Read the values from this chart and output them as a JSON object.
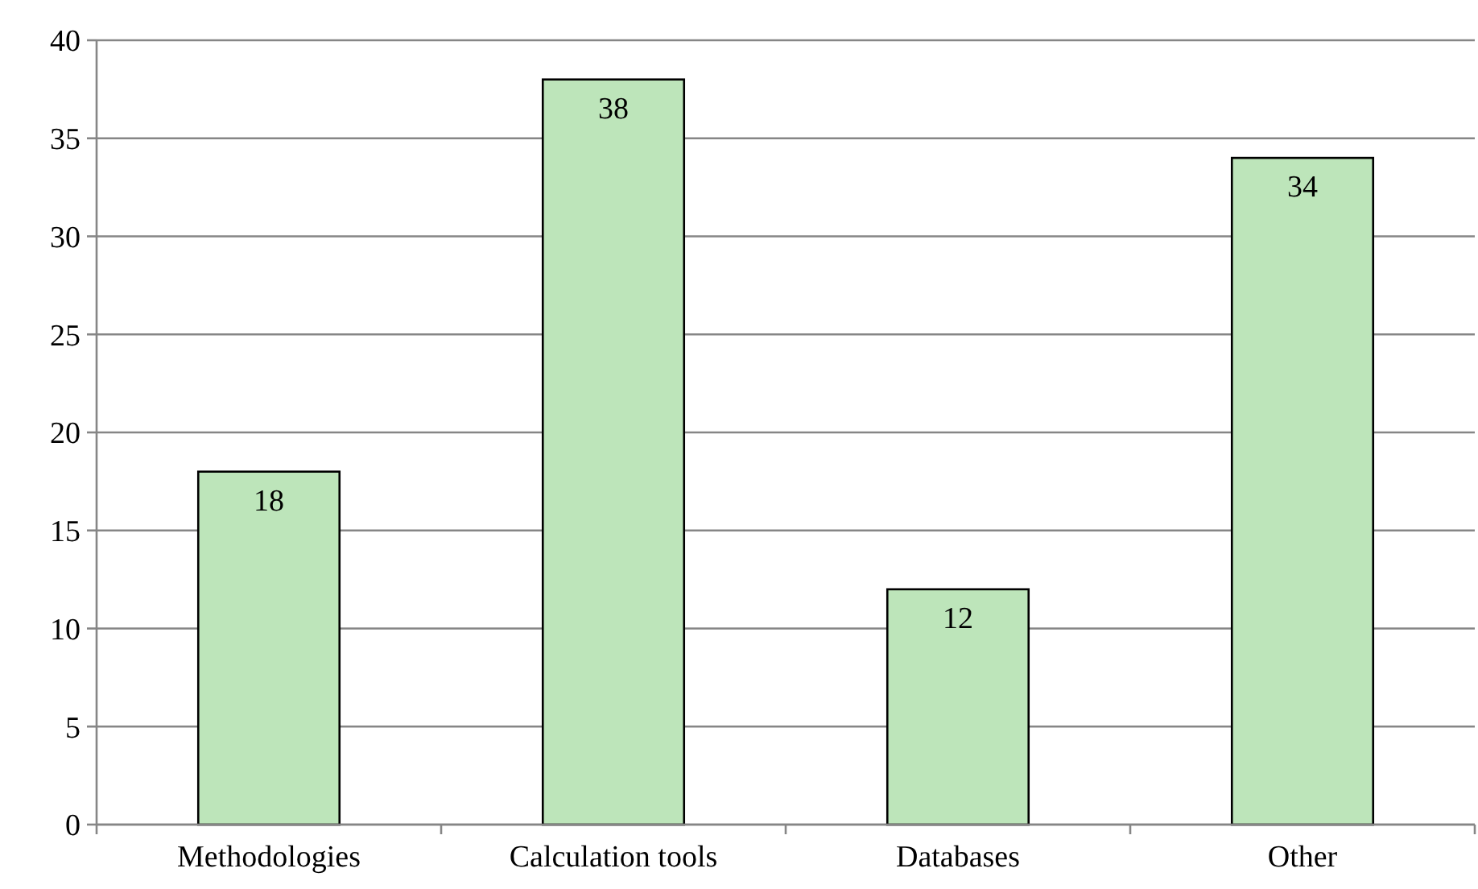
{
  "chart_data": {
    "type": "bar",
    "categories": [
      "Methodologies",
      "Calculation tools",
      "Databases",
      "Other"
    ],
    "values": [
      18,
      38,
      12,
      34
    ],
    "color": "#bde5ba",
    "ylim": [
      0,
      40
    ],
    "yticks": [
      0,
      5,
      10,
      15,
      20,
      25,
      30,
      35,
      40
    ],
    "grid": "y",
    "data_labels": true
  }
}
